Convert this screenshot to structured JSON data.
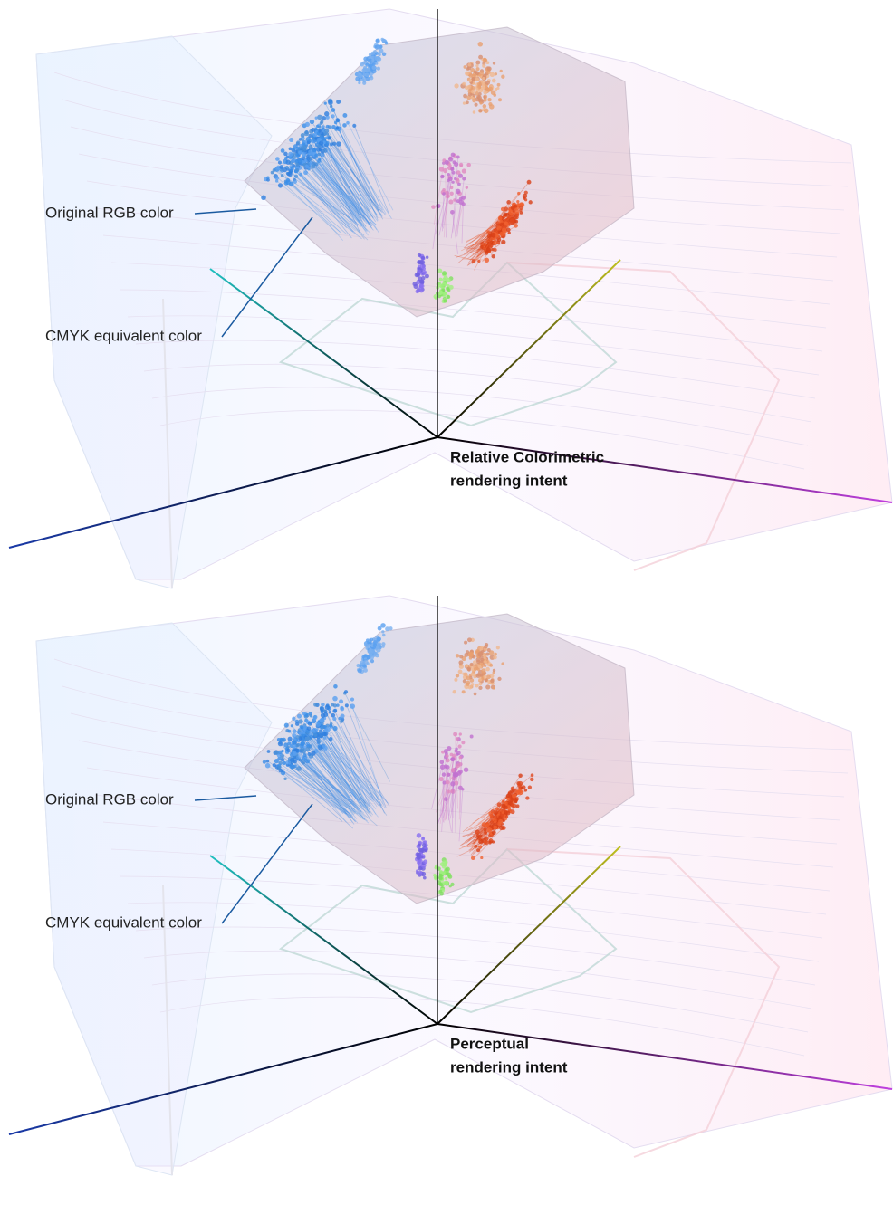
{
  "panels": [
    {
      "original_label": "Original RGB color",
      "cmyk_label": "CMYK equivalent color",
      "title": [
        "Relative Colorimetric",
        "rendering intent"
      ]
    },
    {
      "original_label": "Original RGB color",
      "cmyk_label": "CMYK equivalent color",
      "title": [
        "Perceptual",
        "rendering intent"
      ]
    }
  ]
}
